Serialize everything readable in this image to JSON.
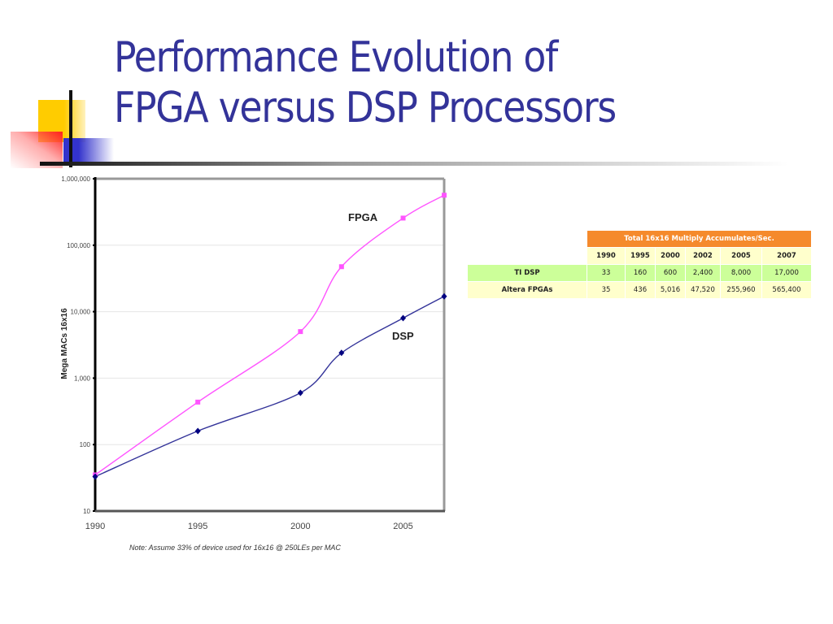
{
  "slide": {
    "title_line1": "Performance Evolution of",
    "title_line2": "FPGA versus DSP Processors"
  },
  "colors": {
    "title": "#333399",
    "fpga_series": "#ff55ff",
    "dsp_series": "#333399",
    "dsp_marker": "#000080",
    "table_header": "#f58a2c",
    "table_year_row": "#ffffcc",
    "table_ti_row": "#ccff99",
    "table_altera_row": "#ffffcc"
  },
  "chart_data": {
    "type": "line",
    "title": "",
    "xlabel": "",
    "ylabel": "Mega MACs 16x16",
    "yscale": "log",
    "ylim": [
      10,
      1000000
    ],
    "xlim": [
      1990,
      2007
    ],
    "yticks": [
      10,
      100,
      1000,
      10000,
      100000,
      1000000
    ],
    "ytick_labels": [
      "10",
      "100",
      "1,000",
      "10,000",
      "100,000",
      "1,000,000"
    ],
    "xticks": [
      1990,
      1995,
      2000,
      2005
    ],
    "xtick_labels": [
      "1990",
      "1995",
      "2000",
      "2005"
    ],
    "grid": true,
    "note": "Note: Assume 33% of device used for 16x16 @ 250LEs per MAC",
    "series": [
      {
        "name": "FPGA",
        "marker": "square",
        "x": [
          1990,
          1995,
          2000,
          2002,
          2005,
          2007
        ],
        "values": [
          35,
          436,
          5016,
          47520,
          255960,
          565400
        ]
      },
      {
        "name": "DSP",
        "marker": "diamond",
        "x": [
          1990,
          1995,
          2000,
          2002,
          2005,
          2007
        ],
        "values": [
          33,
          160,
          600,
          2400,
          8000,
          17000
        ]
      }
    ]
  },
  "table": {
    "header": "Total 16x16 Multiply Accumulates/Sec.",
    "years": [
      "1990",
      "1995",
      "2000",
      "2002",
      "2005",
      "2007"
    ],
    "rows": [
      {
        "name": "TI DSP",
        "values": [
          "33",
          "160",
          "600",
          "2,400",
          "8,000",
          "17,000"
        ]
      },
      {
        "name": "Altera FPGAs",
        "values": [
          "35",
          "436",
          "5,016",
          "47,520",
          "255,960",
          "565,400"
        ]
      }
    ]
  }
}
